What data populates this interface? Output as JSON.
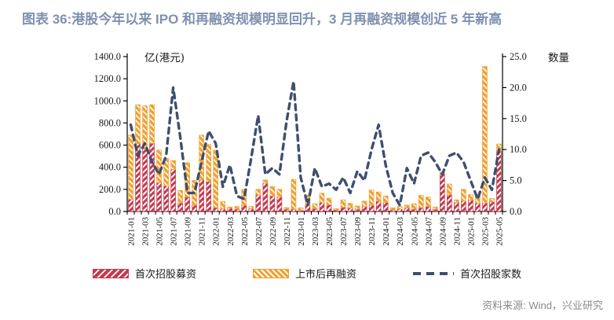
{
  "title": "图表 36:港股今年以来 IPO 和再融资规模明显回升，3 月再融资规模创近 5 年新高",
  "footer": {
    "source": "资料来源: Wind，兴业研究"
  },
  "legend": {
    "ipo": "首次招股募资",
    "refi": "上市后再融资",
    "count": "首次招股家数"
  },
  "colors": {
    "ipo_bar": "#c23b4e",
    "refi_bar": "#f0a132",
    "count_line": "#3e4f6e",
    "title_text": "#7f91b0",
    "footer_text": "#8a8a8a",
    "axis_text": "#1a1a1a"
  },
  "chart_data": {
    "type": "bar",
    "stacked": true,
    "title": "图表 36:港股今年以来 IPO 和再融资规模明显回升，3 月再融资规模创近 5 年新高",
    "left_axis": {
      "label": "亿(港元)",
      "min": 0,
      "max": 1400,
      "step": 200
    },
    "right_axis": {
      "label": "数量",
      "min": 0,
      "max": 25,
      "step": 5
    },
    "x_tick_label_every": 2,
    "grid": false,
    "legend_position": "bottom",
    "categories": [
      "2021-01",
      "2021-02",
      "2021-03",
      "2021-04",
      "2021-05",
      "2021-06",
      "2021-07",
      "2021-08",
      "2021-09",
      "2021-10",
      "2021-11",
      "2021-12",
      "2022-01",
      "2022-02",
      "2022-03",
      "2022-04",
      "2022-05",
      "2022-06",
      "2022-07",
      "2022-08",
      "2022-09",
      "2022-10",
      "2022-11",
      "2022-12",
      "2023-01",
      "2023-02",
      "2023-03",
      "2023-04",
      "2023-05",
      "2023-06",
      "2023-07",
      "2023-08",
      "2023-09",
      "2023-10",
      "2023-11",
      "2023-12",
      "2024-01",
      "2024-02",
      "2024-03",
      "2024-04",
      "2024-05",
      "2024-06",
      "2024-07",
      "2024-08",
      "2024-09",
      "2024-10",
      "2024-11",
      "2024-12",
      "2025-01",
      "2025-02",
      "2025-03",
      "2025-04",
      "2025-05"
    ],
    "series": [
      {
        "name": "首次招股募资",
        "type": "bar",
        "axis": "left",
        "color": "#c23b4e",
        "values": [
          110,
          615,
          565,
          615,
          260,
          230,
          380,
          75,
          130,
          55,
          285,
          270,
          35,
          25,
          30,
          20,
          55,
          25,
          150,
          255,
          140,
          130,
          20,
          20,
          10,
          55,
          25,
          80,
          60,
          15,
          38,
          33,
          21,
          45,
          57,
          93,
          81,
          15,
          21,
          33,
          20,
          35,
          45,
          20,
          340,
          150,
          80,
          95,
          105,
          75,
          75,
          88,
          545
        ]
      },
      {
        "name": "上市后再融资",
        "type": "bar",
        "axis": "left",
        "color": "#f0a132",
        "values": [
          580,
          350,
          390,
          350,
          295,
          250,
          80,
          115,
          310,
          225,
          405,
          335,
          520,
          65,
          10,
          25,
          145,
          20,
          50,
          30,
          85,
          70,
          15,
          270,
          23,
          95,
          45,
          85,
          60,
          11,
          67,
          41,
          29,
          48,
          136,
          83,
          59,
          18,
          24,
          24,
          50,
          110,
          85,
          20,
          15,
          98,
          25,
          105,
          47,
          55,
          1235,
          29,
          65
        ]
      },
      {
        "name": "首次招股家数",
        "type": "line",
        "axis": "right",
        "color": "#3e4f6e",
        "dashed": true,
        "values": [
          14,
          9,
          11,
          8,
          6,
          9,
          20,
          12,
          3,
          3,
          8,
          13,
          11,
          4,
          7.5,
          2.5,
          2,
          8.5,
          15.5,
          6,
          7,
          6,
          14.5,
          21,
          5.5,
          1,
          7,
          4,
          4.5,
          3.5,
          5.5,
          3,
          6.5,
          5,
          10,
          14,
          7.5,
          3,
          1,
          7,
          4.5,
          9,
          9.5,
          8,
          6,
          9,
          9.5,
          8,
          5,
          2,
          5.5,
          3.5,
          10
        ]
      }
    ]
  }
}
